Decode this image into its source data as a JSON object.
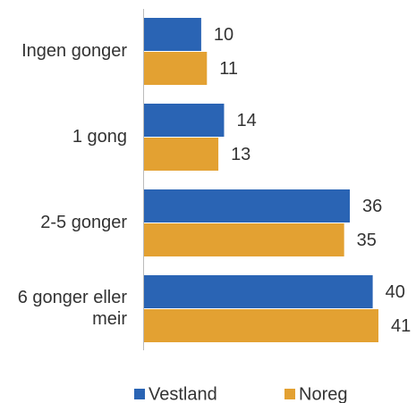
{
  "chart_data": {
    "type": "bar",
    "orientation": "horizontal",
    "categories": [
      "Ingen gonger",
      "1 gong",
      "2-5 gonger",
      "6 gonger eller meir"
    ],
    "series": [
      {
        "name": "Vestland",
        "color": "#2a64b4",
        "values": [
          10,
          14,
          36,
          40
        ]
      },
      {
        "name": "Noreg",
        "color": "#e3a132",
        "values": [
          11,
          13,
          35,
          41
        ]
      }
    ],
    "legend": "bottom"
  }
}
